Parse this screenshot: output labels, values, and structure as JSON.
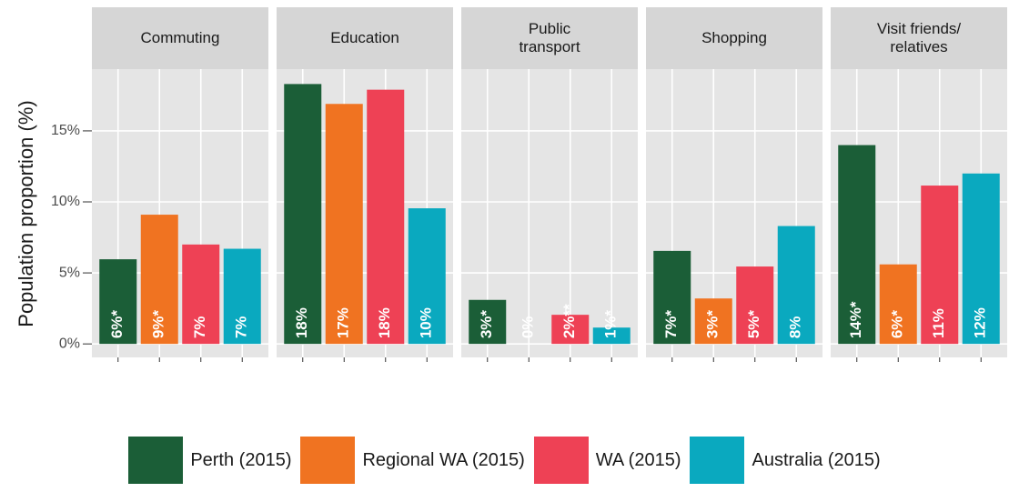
{
  "chart_data": {
    "type": "bar",
    "y_label": "Population proportion (%)",
    "categories": [
      "Commuting",
      "Education",
      "Public\ntransport",
      "Shopping",
      "Visit friends/\nrelatives"
    ],
    "series": [
      {
        "name": "Perth (2015)",
        "color": "#1b5e37",
        "values": [
          5.96,
          18.3,
          3.1,
          6.55,
          14.0
        ],
        "value_labels": [
          "6%*",
          "18%",
          "3%*",
          "7%*",
          "14%*"
        ]
      },
      {
        "name": "Regional WA (2015)",
        "color": "#f07321",
        "values": [
          9.1,
          16.9,
          0,
          3.2,
          5.6
        ],
        "value_labels": [
          "9%*",
          "17%",
          "0%",
          "3%*",
          "6%*"
        ]
      },
      {
        "name": "WA (2015)",
        "color": "#ee4155",
        "values": [
          7.0,
          17.9,
          2.05,
          5.45,
          11.15
        ],
        "value_labels": [
          "7%",
          "18%",
          "2%**",
          "5%*",
          "11%"
        ]
      },
      {
        "name": "Australia (2015)",
        "color": "#0aa9bf",
        "values": [
          6.7,
          9.55,
          1.15,
          8.3,
          12.0
        ],
        "value_labels": [
          "7%",
          "10%",
          "1%*",
          "8%",
          "12%"
        ]
      }
    ],
    "ylim": [
      -0.95,
      19.35
    ],
    "yticks": [
      {
        "value": 0,
        "label": "0%"
      },
      {
        "value": 5,
        "label": "5%"
      },
      {
        "value": 10,
        "label": "10%"
      },
      {
        "value": 15,
        "label": "15%"
      }
    ],
    "grid": true,
    "legend": "bottom"
  }
}
